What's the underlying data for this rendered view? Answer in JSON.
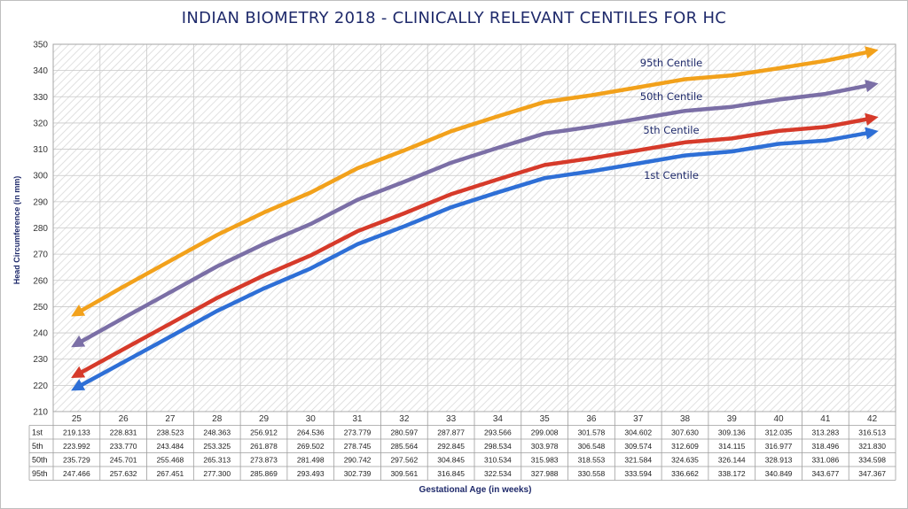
{
  "chart_data": {
    "type": "line",
    "title": "INDIAN BIOMETRY 2018 - CLINICALLY RELEVANT CENTILES FOR HC",
    "xlabel": "Gestational Age (in weeks)",
    "ylabel": "Head Circumference (in mm)",
    "ylim": [
      210,
      350
    ],
    "yticks": [
      210,
      220,
      230,
      240,
      250,
      260,
      270,
      280,
      290,
      300,
      310,
      320,
      330,
      340,
      350
    ],
    "grid": true,
    "x": [
      "25",
      "26",
      "27",
      "28",
      "29",
      "30",
      "31",
      "32",
      "33",
      "34",
      "35",
      "36",
      "37",
      "38",
      "39",
      "40",
      "41",
      "42"
    ],
    "series": [
      {
        "key": "1st",
        "name": "1st Centile",
        "table_label": "1st",
        "color": "#2e6fd6",
        "values": [
          219.133,
          228.831,
          238.523,
          248.363,
          256.912,
          264.536,
          273.779,
          280.597,
          287.877,
          293.566,
          299.008,
          301.578,
          304.602,
          307.63,
          309.136,
          312.035,
          313.283,
          316.513
        ],
        "table_values": [
          "219.133",
          "228.831",
          "238.523",
          "248.363",
          "256.912",
          "264.536",
          "273.779",
          "280.597",
          "287.877",
          "293.566",
          "299.008",
          "301.578",
          "304.602",
          "307.630",
          "309.136",
          "312.035",
          "313.283",
          "316.513"
        ]
      },
      {
        "key": "5th",
        "name": "5th Centile",
        "table_label": "5th",
        "color": "#d63a2a",
        "values": [
          223.992,
          233.77,
          243.484,
          253.325,
          261.878,
          269.502,
          278.745,
          285.564,
          292.845,
          298.534,
          303.978,
          306.548,
          309.574,
          312.609,
          314.115,
          316.977,
          318.496,
          321.83
        ],
        "table_values": [
          "223.992",
          "233.770",
          "243.484",
          "253.325",
          "261.878",
          "269.502",
          "278.745",
          "285.564",
          "292.845",
          "298.534",
          "303.978",
          "306.548",
          "309.574",
          "312.609",
          "314.115",
          "316.977",
          "318.496",
          "321.830"
        ]
      },
      {
        "key": "50th",
        "name": "50th Centile",
        "table_label": "50th",
        "color": "#7b6fa6",
        "values": [
          235.729,
          245.701,
          255.468,
          265.313,
          273.873,
          281.498,
          290.742,
          297.562,
          304.845,
          310.534,
          315.983,
          318.553,
          321.584,
          324.635,
          326.144,
          328.913,
          331.086,
          334.598
        ],
        "table_values": [
          "235.729",
          "245.701",
          "255.468",
          "265.313",
          "273.873",
          "281.498",
          "290.742",
          "297.562",
          "304.845",
          "310.534",
          "315.983",
          "318.553",
          "321.584",
          "324.635",
          "326.144",
          "328.913",
          "331.086",
          "334.598"
        ]
      },
      {
        "key": "95th",
        "name": "95th Centile",
        "table_label": "95th",
        "color": "#f2a11b",
        "values": [
          247.466,
          257.632,
          267.451,
          277.3,
          285.869,
          293.493,
          302.739,
          309.561,
          316.845,
          322.534,
          327.988,
          330.558,
          333.594,
          336.662,
          338.172,
          340.849,
          343.677,
          347.367
        ],
        "table_values": [
          "247.466",
          "257.632",
          "267.451",
          "277.300",
          "285.869",
          "293.493",
          "302.739",
          "309.561",
          "316.845",
          "322.534",
          "327.988",
          "330.558",
          "333.594",
          "336.662",
          "338.172",
          "340.849",
          "343.677",
          "347.367"
        ]
      }
    ]
  }
}
